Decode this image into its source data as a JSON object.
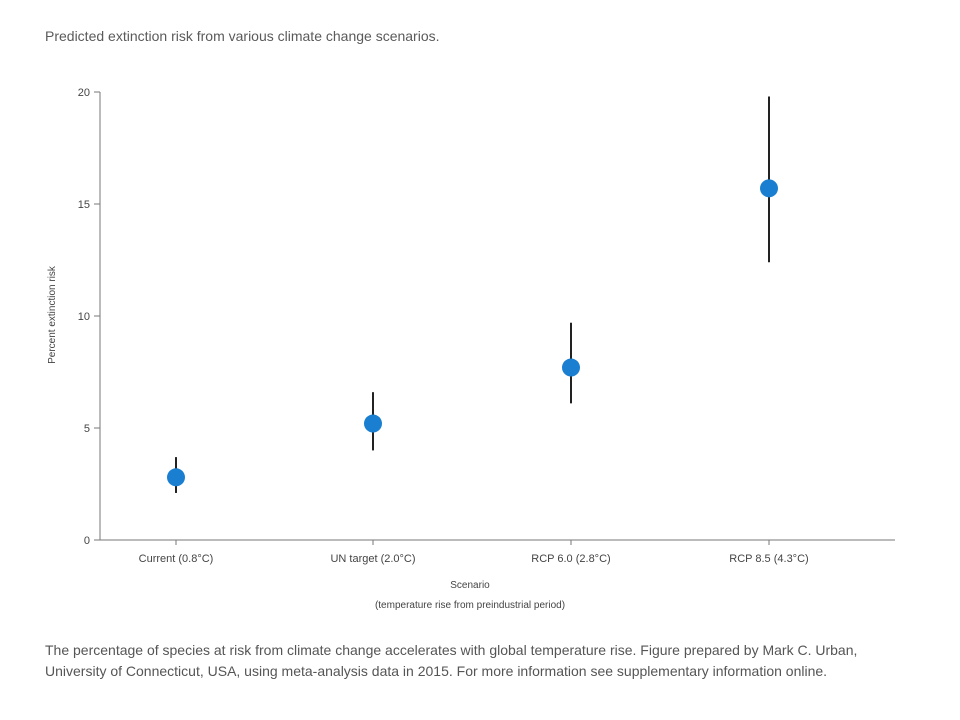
{
  "chart_data": {
    "type": "scatter",
    "title": "Predicted extinction risk from various climate change scenarios.",
    "xlabel": "Scenario",
    "xlabel_sub": "(temperature rise from preindustrial period)",
    "ylabel": "Percent extinction risk",
    "ylim": [
      0,
      20
    ],
    "yticks": [
      0,
      5,
      10,
      15,
      20
    ],
    "categories": [
      "Current (0.8°C)",
      "UN target (2.0°C)",
      "RCP 6.0 (2.8°C)",
      "RCP 8.5 (4.3°C)"
    ],
    "values": [
      2.8,
      5.2,
      7.7,
      15.7
    ],
    "error_low": [
      2.1,
      4.0,
      6.1,
      12.4
    ],
    "error_high": [
      3.7,
      6.6,
      9.7,
      19.8
    ],
    "marker_color": "#1a7fd0",
    "errorbar_color": "#222222",
    "grid": false
  },
  "caption": "The percentage of species at risk from climate change accelerates with global temperature rise. Figure prepared by Mark C. Urban, University of Connecticut, USA, using meta-analysis data in 2015. For more information see supplementary information online."
}
